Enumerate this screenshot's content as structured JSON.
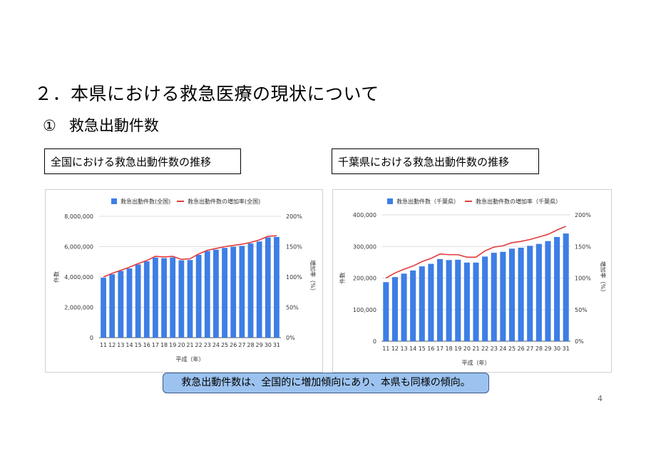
{
  "page": {
    "title": "２．本県における救急医療の現状について",
    "subtitle_num": "①",
    "subtitle_text": "救急出動件数",
    "left_caption": "全国における救急出動件数の推移",
    "right_caption": "千葉県における救急出動件数の推移",
    "summary": "救急出動件数は、全国的に増加傾向にあり、本県も同様の傾向。",
    "page_number": "4"
  },
  "colors": {
    "bar": "#3d7ee6",
    "line": "#e23b3b",
    "summary_bg": "#9cc3f0"
  },
  "chart_data": [
    {
      "type": "bar",
      "categories": [
        "11",
        "12",
        "13",
        "14",
        "15",
        "16",
        "17",
        "18",
        "19",
        "20",
        "21",
        "22",
        "23",
        "24",
        "25",
        "26",
        "27",
        "28",
        "29",
        "30",
        "31"
      ],
      "series": [
        {
          "name": "救急出動件数(全国)",
          "type": "bar",
          "axis": "left",
          "values": [
            3950000,
            4180000,
            4400000,
            4560000,
            4830000,
            5030000,
            5280000,
            5240000,
            5290000,
            5100000,
            5120000,
            5460000,
            5710000,
            5800000,
            5920000,
            5990000,
            6050000,
            6210000,
            6340000,
            6610000,
            6640000
          ]
        },
        {
          "name": "救急出動件数の増加率(全国)",
          "type": "line",
          "axis": "right",
          "values": [
            100,
            106,
            111,
            116,
            122,
            127,
            134,
            133,
            134,
            129,
            130,
            138,
            144,
            147,
            150,
            152,
            154,
            157,
            161,
            167,
            168
          ]
        }
      ],
      "xlabel": "平成（年）",
      "ylabel": "件数",
      "y2label": "増加率（%）",
      "ylim": [
        0,
        8000000
      ],
      "y2lim": [
        0,
        200
      ],
      "yticks": [
        "0",
        "2,000,000",
        "4,000,000",
        "6,000,000",
        "8,000,000"
      ],
      "y2ticks": [
        "0%",
        "50%",
        "100%",
        "150%",
        "200%"
      ],
      "grid": true,
      "legend": "top-center"
    },
    {
      "type": "bar",
      "categories": [
        "11",
        "12",
        "13",
        "14",
        "15",
        "16",
        "17",
        "18",
        "19",
        "20",
        "21",
        "22",
        "23",
        "24",
        "25",
        "26",
        "27",
        "28",
        "29",
        "30",
        "31"
      ],
      "series": [
        {
          "name": "救急出動件数（千葉県）",
          "type": "bar",
          "axis": "left",
          "values": [
            187000,
            203000,
            214000,
            224000,
            237000,
            245000,
            260000,
            257000,
            258000,
            249000,
            249000,
            268000,
            280000,
            283000,
            293000,
            296000,
            302000,
            308000,
            317000,
            330000,
            341000
          ]
        },
        {
          "name": "救急出動件数の増加率（千葉県）",
          "type": "line",
          "axis": "right",
          "values": [
            100,
            108,
            114,
            119,
            126,
            131,
            138,
            137,
            137,
            133,
            133,
            143,
            149,
            151,
            156,
            158,
            161,
            165,
            169,
            176,
            182
          ]
        }
      ],
      "xlabel": "平成（年）",
      "ylabel": "件数",
      "y2label": "増加率（%）",
      "ylim": [
        0,
        400000
      ],
      "y2lim": [
        0,
        200
      ],
      "yticks": [
        "0",
        "100,000",
        "200,000",
        "300,000",
        "400,000"
      ],
      "y2ticks": [
        "0%",
        "50%",
        "100%",
        "150%",
        "200%"
      ],
      "grid": true,
      "legend": "top-center"
    }
  ]
}
